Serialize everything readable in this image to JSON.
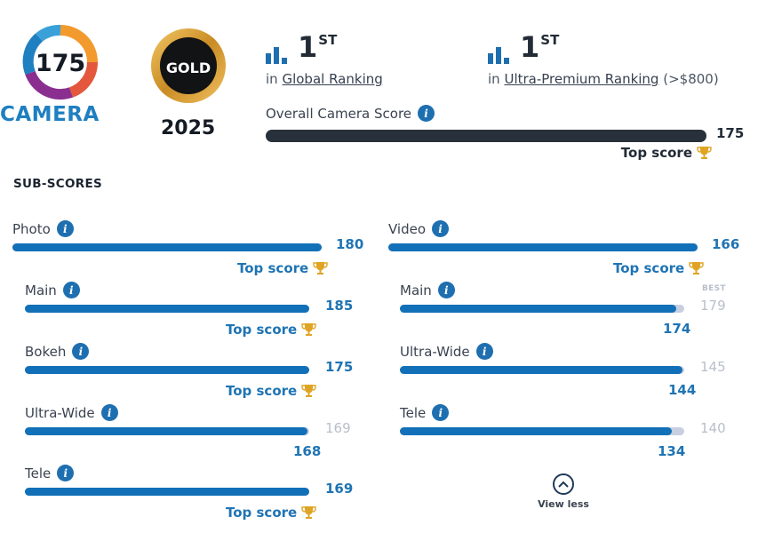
{
  "badges": {
    "camera_score": "175",
    "camera_label": "CAMERA",
    "gold_label": "GOLD",
    "gold_year": "2025"
  },
  "rankings": [
    {
      "rank": "1",
      "suffix": "ST",
      "prefix": "in",
      "link": "Global Ranking",
      "extra": ""
    },
    {
      "rank": "1",
      "suffix": "ST",
      "prefix": "in",
      "link": "Ultra-Premium Ranking",
      "extra": "(>$800)"
    }
  ],
  "overall": {
    "label": "Overall Camera Score",
    "value": "175",
    "fraction": 1.0,
    "top_score_label": "Top score"
  },
  "subscores_title": "SUB-SCORES",
  "photo": {
    "label": "Photo",
    "value": "180",
    "fraction": 1.0,
    "top_score_label": "Top score",
    "sub": [
      {
        "label": "Main",
        "value": "185",
        "fraction": 1.0,
        "top": "Top score"
      },
      {
        "label": "Bokeh",
        "value": "175",
        "fraction": 1.0,
        "top": "Top score"
      },
      {
        "label": "Ultra-Wide",
        "value": "168",
        "best": "169",
        "fraction": 0.994
      },
      {
        "label": "Tele",
        "value": "169",
        "fraction": 1.0,
        "top": "Top score"
      }
    ]
  },
  "video": {
    "label": "Video",
    "value": "166",
    "fraction": 1.0,
    "top_score_label": "Top score",
    "best_tag": "BEST",
    "sub": [
      {
        "label": "Main",
        "value": "174",
        "best": "179",
        "fraction": 0.972
      },
      {
        "label": "Ultra-Wide",
        "value": "144",
        "best": "145",
        "fraction": 0.993
      },
      {
        "label": "Tele",
        "value": "134",
        "best": "140",
        "fraction": 0.957
      }
    ]
  },
  "view_less": "View less",
  "colors": {
    "accent": "#1270b8",
    "dark": "#28313b",
    "gold": "#e0a424",
    "muted": "#b8bfcb"
  }
}
